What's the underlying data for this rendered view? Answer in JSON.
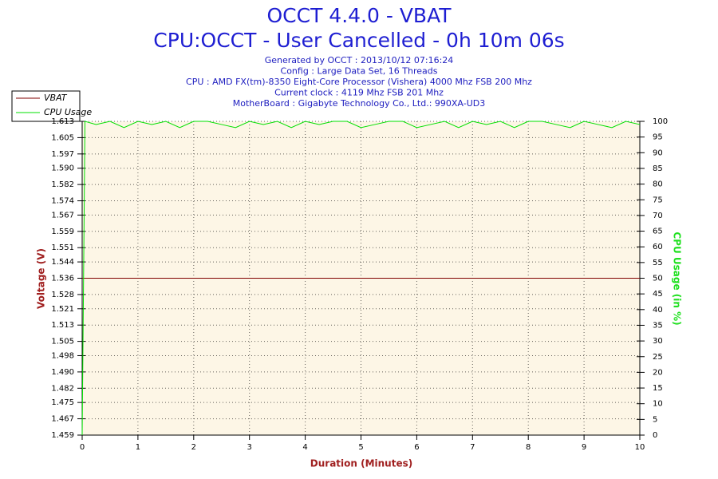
{
  "chart_data": {
    "type": "line",
    "title": "OCCT 4.4.0 - VBAT",
    "subtitle": "CPU:OCCT - User Cancelled - 0h 10m 06s",
    "info": [
      "Generated by OCCT : 2013/10/12 07:16:24",
      "Config : Large Data Set, 16 Threads",
      "CPU : AMD FX(tm)-8350 Eight-Core Processor (Vishera) 4000 Mhz FSB 200 Mhz",
      "Current clock : 4119 Mhz FSB 201 Mhz",
      "MotherBoard : Gigabyte Technology Co., Ltd.: 990XA-UD3"
    ],
    "xlabel": "Duration (Minutes)",
    "ylabel": "Voltage (V)",
    "y2label": "CPU Usage (in %)",
    "x": [
      0,
      0.05,
      0.25,
      0.5,
      0.75,
      1,
      1.25,
      1.5,
      1.75,
      2,
      2.25,
      2.5,
      2.75,
      3,
      3.25,
      3.5,
      3.75,
      4,
      4.25,
      4.5,
      4.75,
      5,
      5.25,
      5.5,
      5.75,
      6,
      6.25,
      6.5,
      6.75,
      7,
      7.25,
      7.5,
      7.75,
      8,
      8.25,
      8.5,
      8.75,
      9,
      9.25,
      9.5,
      9.75,
      10
    ],
    "series": [
      {
        "name": "VBAT",
        "color": "#800000",
        "values": [
          1.536,
          1.536,
          1.536,
          1.536,
          1.536,
          1.536,
          1.536,
          1.536,
          1.536,
          1.536,
          1.536,
          1.536,
          1.536,
          1.536,
          1.536,
          1.536,
          1.536,
          1.536,
          1.536,
          1.536,
          1.536,
          1.536,
          1.536,
          1.536,
          1.536,
          1.536,
          1.536,
          1.536,
          1.536,
          1.536,
          1.536,
          1.536,
          1.536,
          1.536,
          1.536,
          1.536,
          1.536,
          1.536,
          1.536,
          1.536,
          1.536,
          1.536
        ]
      },
      {
        "name": "CPU Usage",
        "color": "#00e000",
        "axis": "y2",
        "values": [
          0,
          100,
          99,
          100,
          98,
          100,
          99,
          100,
          98,
          100,
          100,
          99,
          98,
          100,
          99,
          100,
          98,
          100,
          99,
          100,
          100,
          98,
          99,
          100,
          100,
          98,
          99,
          100,
          98,
          100,
          99,
          100,
          98,
          100,
          100,
          99,
          98,
          100,
          99,
          98,
          100,
          99
        ]
      }
    ],
    "xlim": [
      0,
      10
    ],
    "xticks": [
      0,
      1,
      2,
      3,
      4,
      5,
      6,
      7,
      8,
      9,
      10
    ],
    "ylim": [
      1.459,
      1.613
    ],
    "yticks": [
      1.459,
      1.467,
      1.475,
      1.482,
      {
        "value": 1.49,
        "label": "1.490"
      },
      1.498,
      1.505,
      1.513,
      1.521,
      1.528,
      1.536,
      1.544,
      1.551,
      1.559,
      1.567,
      1.574,
      1.582,
      {
        "value": 1.59,
        "label": "1.590"
      },
      1.597,
      1.605,
      1.613
    ],
    "y2lim": [
      0,
      100
    ],
    "y2ticks": [
      0,
      5,
      10,
      15,
      20,
      25,
      30,
      35,
      40,
      45,
      50,
      55,
      60,
      65,
      70,
      75,
      80,
      85,
      90,
      95,
      100
    ],
    "grid": true,
    "legend": "top-left"
  }
}
